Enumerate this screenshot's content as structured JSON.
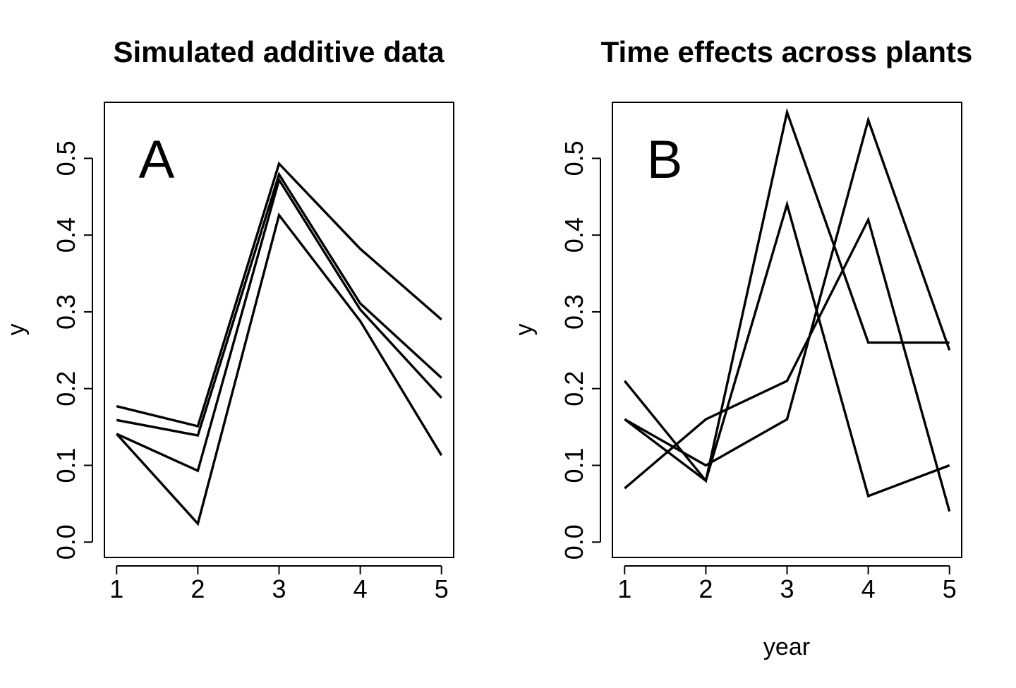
{
  "chart_data": [
    {
      "type": "line",
      "title": "Simulated additive data",
      "panel_label": "A",
      "xlabel": "",
      "ylabel": "y",
      "x": [
        1,
        2,
        3,
        4,
        5
      ],
      "xticks": [
        "1",
        "2",
        "3",
        "4",
        "5"
      ],
      "yticks": [
        "0.0",
        "0.1",
        "0.2",
        "0.3",
        "0.4",
        "0.5"
      ],
      "xlim": [
        0.85,
        5.15
      ],
      "ylim": [
        -0.02,
        0.573
      ],
      "series": [
        {
          "values": [
            0.177,
            0.151,
            0.493,
            0.382,
            0.29
          ]
        },
        {
          "values": [
            0.159,
            0.139,
            0.479,
            0.311,
            0.214
          ]
        },
        {
          "values": [
            0.141,
            0.093,
            0.472,
            0.303,
            0.188
          ]
        },
        {
          "values": [
            0.141,
            0.024,
            0.426,
            0.288,
            0.113
          ]
        }
      ]
    },
    {
      "type": "line",
      "title": "Time effects across plants",
      "panel_label": "B",
      "xlabel": "year",
      "ylabel": "y",
      "x": [
        1,
        2,
        3,
        4,
        5
      ],
      "xticks": [
        "1",
        "2",
        "3",
        "4",
        "5"
      ],
      "yticks": [
        "0.0",
        "0.1",
        "0.2",
        "0.3",
        "0.4",
        "0.5"
      ],
      "xlim": [
        0.85,
        5.15
      ],
      "ylim": [
        -0.02,
        0.573
      ],
      "series": [
        {
          "values": [
            0.21,
            0.08,
            0.56,
            0.26,
            0.26
          ]
        },
        {
          "values": [
            0.16,
            0.08,
            0.44,
            0.06,
            0.1
          ]
        },
        {
          "values": [
            0.07,
            0.16,
            0.21,
            0.42,
            0.04
          ]
        },
        {
          "values": [
            0.16,
            0.1,
            0.16,
            0.55,
            0.25
          ]
        }
      ]
    }
  ]
}
